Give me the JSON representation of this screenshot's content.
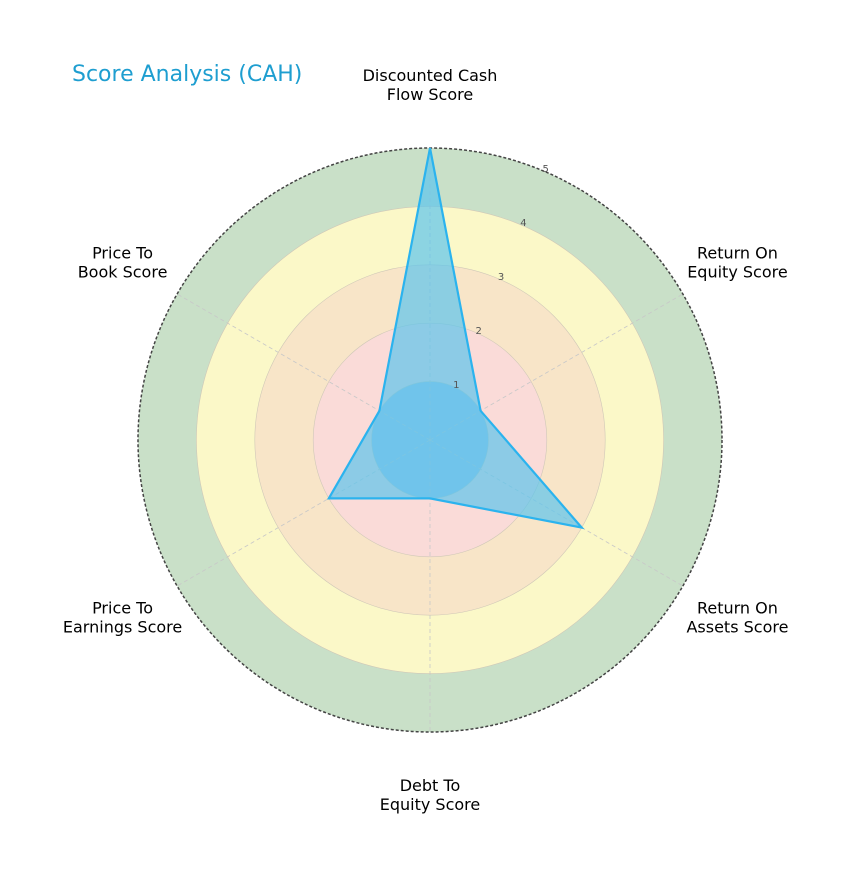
{
  "chart_data": {
    "type": "radar",
    "title": "Score Analysis (CAH)",
    "categories": [
      "Discounted Cash Flow Score",
      "Return On Equity Score",
      "Return On Assets Score",
      "Debt To Equity Score",
      "Price To Earnings Score",
      "Price To Book Score"
    ],
    "category_lines": [
      [
        "Discounted Cash",
        "Flow Score"
      ],
      [
        "Return On",
        "Equity Score"
      ],
      [
        "Return On",
        "Assets Score"
      ],
      [
        "Debt To",
        "Equity Score"
      ],
      [
        "Price To",
        "Earnings Score"
      ],
      [
        "Price To",
        "Book Score"
      ]
    ],
    "values": [
      5,
      1,
      3,
      1,
      2,
      1
    ],
    "rlim": [
      0,
      5
    ],
    "rticks": [
      "1",
      "2",
      "3",
      "4",
      "5"
    ],
    "bands": [
      {
        "from": 0,
        "to": 1,
        "color": "#9dc3e6"
      },
      {
        "from": 1,
        "to": 2,
        "color": "#fadbd8"
      },
      {
        "from": 2,
        "to": 3,
        "color": "#f8e5c8"
      },
      {
        "from": 3,
        "to": 4,
        "color": "#fbf8c8"
      },
      {
        "from": 4,
        "to": 5,
        "color": "#c9e0c8"
      }
    ],
    "series_color": "#2bb3ee",
    "fill_color": "#5cc4ec",
    "title_color": "#1e9ed0",
    "grid": true
  }
}
